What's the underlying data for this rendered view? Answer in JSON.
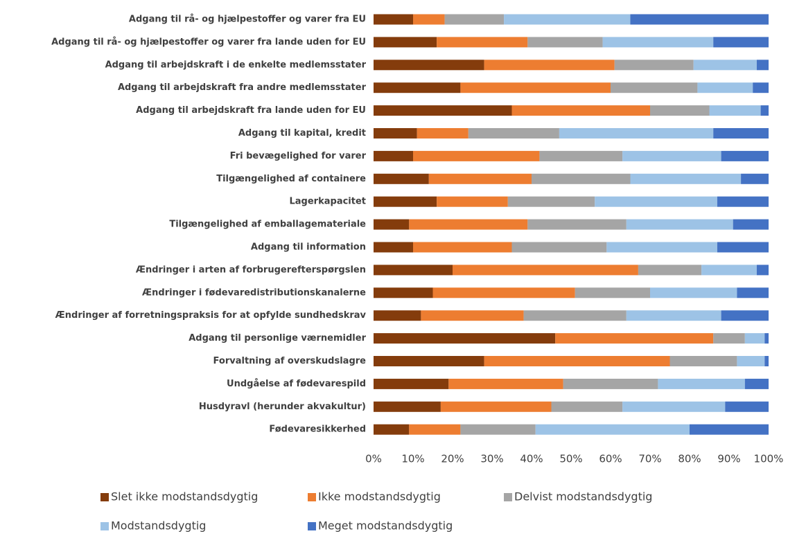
{
  "chart_data": {
    "type": "stacked-bar-horizontal",
    "categories": [
      "Adgang til rå- og hjælpestoffer og varer fra EU",
      "Adgang til rå- og hjælpestoffer og varer fra lande uden for EU",
      "Adgang til arbejdskraft i de enkelte medlemsstater",
      "Adgang til arbejdskraft fra andre medlemsstater",
      "Adgang til arbejdskraft fra lande uden for EU",
      "Adgang til kapital, kredit",
      "Fri bevægelighed for varer",
      "Tilgængelighed af containere",
      "Lagerkapacitet",
      "Tilgængelighed af emballagemateriale",
      "Adgang til information",
      "Ændringer i arten af forbrugerefterspørgslen",
      "Ændringer i fødevaredistributionskanalerne",
      "Ændringer af forretningspraksis for at opfylde sundhedskrav",
      "Adgang til personlige værnemidler",
      "Forvaltning af overskudslagre",
      "Undgåelse af fødevarespild",
      "Husdyravl (herunder akvakultur)",
      "Fødevaresikkerhed"
    ],
    "series": [
      {
        "name": "Slet ikke modstandsdygtig",
        "color": "#843c0c",
        "values": [
          10,
          16,
          28,
          22,
          35,
          11,
          10,
          14,
          16,
          9,
          10,
          20,
          15,
          12,
          46,
          28,
          19,
          17,
          9
        ]
      },
      {
        "name": "Ikke modstandsdygtig",
        "color": "#ed7d31",
        "values": [
          8,
          23,
          33,
          38,
          35,
          13,
          32,
          26,
          18,
          30,
          25,
          47,
          36,
          26,
          40,
          47,
          29,
          28,
          13
        ]
      },
      {
        "name": "Delvist modstandsdygtig",
        "color": "#a5a5a5",
        "values": [
          15,
          19,
          20,
          22,
          15,
          23,
          21,
          25,
          22,
          25,
          24,
          16,
          19,
          26,
          8,
          17,
          24,
          18,
          19
        ]
      },
      {
        "name": "Modstandsdygtig",
        "color": "#9dc3e6",
        "values": [
          32,
          28,
          16,
          14,
          13,
          39,
          25,
          28,
          31,
          27,
          28,
          14,
          22,
          24,
          5,
          7,
          22,
          26,
          39
        ]
      },
      {
        "name": "Meget modstandsdygtig",
        "color": "#4472c4",
        "values": [
          35,
          14,
          3,
          4,
          2,
          14,
          12,
          7,
          13,
          9,
          13,
          3,
          8,
          12,
          1,
          1,
          6,
          11,
          20
        ]
      }
    ],
    "xlim": [
      0,
      100
    ],
    "xticks": [
      {
        "value": 0,
        "label": "0%"
      },
      {
        "value": 10,
        "label": "10%"
      },
      {
        "value": 20,
        "label": "20%"
      },
      {
        "value": 30,
        "label": "30%"
      },
      {
        "value": 40,
        "label": "40%"
      },
      {
        "value": 50,
        "label": "50%"
      },
      {
        "value": 60,
        "label": "60%"
      },
      {
        "value": 70,
        "label": "70%"
      },
      {
        "value": 80,
        "label": "80%"
      },
      {
        "value": 90,
        "label": "90%"
      },
      {
        "value": 100,
        "label": "100%"
      }
    ]
  }
}
